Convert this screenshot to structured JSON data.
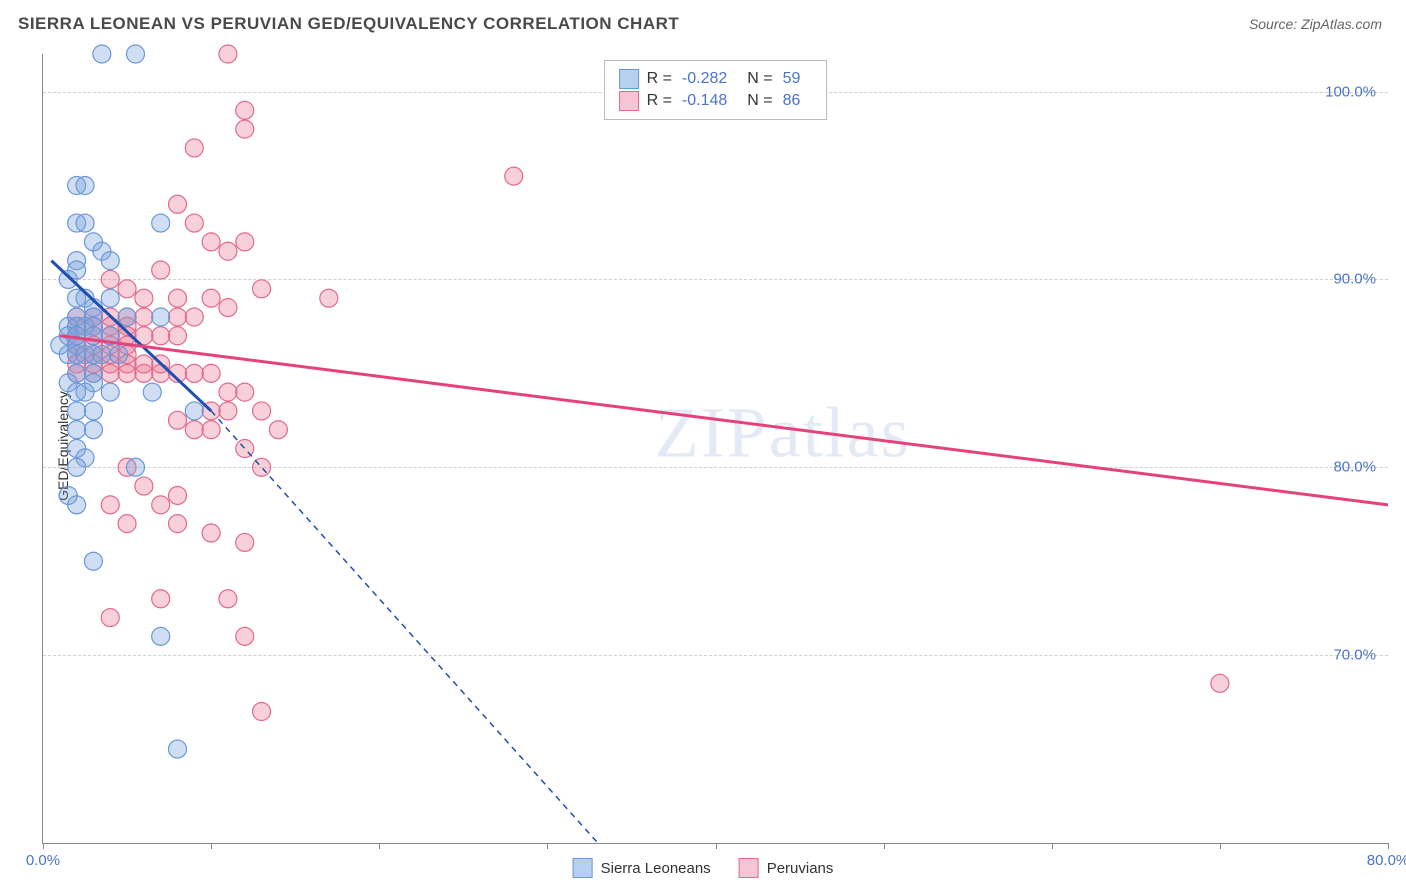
{
  "title": "SIERRA LEONEAN VS PERUVIAN GED/EQUIVALENCY CORRELATION CHART",
  "source": "Source: ZipAtlas.com",
  "ylabel": "GED/Equivalency",
  "watermark": "ZIPatlas",
  "chart": {
    "type": "scatter",
    "xlim": [
      0,
      80
    ],
    "ylim": [
      60,
      102
    ],
    "xticks": [
      0,
      10,
      20,
      30,
      40,
      50,
      60,
      70,
      80
    ],
    "xtick_labels": {
      "0": "0.0%",
      "80": "80.0%"
    },
    "yticks": [
      70,
      80,
      90,
      100
    ],
    "ytick_labels": [
      "70.0%",
      "80.0%",
      "90.0%",
      "100.0%"
    ],
    "grid_color": "#d0d0d0",
    "axis_color": "#888888",
    "background_color": "#ffffff",
    "marker_radius": 9,
    "marker_stroke_width": 1.2,
    "series": [
      {
        "name": "Sierra Leoneans",
        "color_fill": "rgba(120,160,220,0.35)",
        "color_stroke": "#6a98d8",
        "r": -0.282,
        "n": 59,
        "trend_color": "#1f4fb0",
        "trend_width": 3,
        "trend_solid": {
          "x1": 0.5,
          "y1": 91,
          "x2": 10,
          "y2": 83
        },
        "trend_dash": {
          "x1": 10,
          "y1": 83,
          "x2": 33,
          "y2": 60
        },
        "points": [
          [
            3.5,
            102
          ],
          [
            5.5,
            102
          ],
          [
            2,
            95
          ],
          [
            2.5,
            95
          ],
          [
            2,
            93
          ],
          [
            2.5,
            93
          ],
          [
            3,
            92
          ],
          [
            3.5,
            91.5
          ],
          [
            2,
            91
          ],
          [
            4,
            91
          ],
          [
            2,
            90.5
          ],
          [
            1.5,
            90
          ],
          [
            7,
            93
          ],
          [
            2,
            89
          ],
          [
            2.5,
            89
          ],
          [
            3,
            88.5
          ],
          [
            2,
            88
          ],
          [
            3,
            88
          ],
          [
            1.5,
            87.5
          ],
          [
            2,
            87.5
          ],
          [
            2.5,
            87.5
          ],
          [
            3,
            87.5
          ],
          [
            1.5,
            87
          ],
          [
            2,
            87
          ],
          [
            3,
            87
          ],
          [
            4,
            87
          ],
          [
            1,
            86.5
          ],
          [
            2,
            86.5
          ],
          [
            1.5,
            86
          ],
          [
            2,
            86
          ],
          [
            2.5,
            86
          ],
          [
            3,
            86
          ],
          [
            7,
            88
          ],
          [
            2,
            85
          ],
          [
            3,
            85
          ],
          [
            1.5,
            84.5
          ],
          [
            2,
            84
          ],
          [
            2.5,
            84
          ],
          [
            4,
            84
          ],
          [
            6.5,
            84
          ],
          [
            2,
            83
          ],
          [
            3,
            83
          ],
          [
            9,
            83
          ],
          [
            2,
            82
          ],
          [
            3,
            82
          ],
          [
            2,
            81
          ],
          [
            2.5,
            80.5
          ],
          [
            2,
            80
          ],
          [
            5.5,
            80
          ],
          [
            1.5,
            78.5
          ],
          [
            2,
            78
          ],
          [
            3,
            75
          ],
          [
            7,
            71
          ],
          [
            8,
            65
          ],
          [
            4,
            89
          ],
          [
            5,
            88
          ],
          [
            3.5,
            86
          ],
          [
            4.5,
            86
          ],
          [
            3,
            84.5
          ]
        ]
      },
      {
        "name": "Peruvians",
        "color_fill": "rgba(235,120,150,0.35)",
        "color_stroke": "#e16a8e",
        "r": -0.148,
        "n": 86,
        "trend_color": "#e6427a",
        "trend_width": 3,
        "trend_solid": {
          "x1": 1,
          "y1": 87,
          "x2": 80,
          "y2": 78
        },
        "points": [
          [
            11,
            102
          ],
          [
            12,
            99
          ],
          [
            12,
            98
          ],
          [
            9,
            97
          ],
          [
            28,
            95.5
          ],
          [
            8,
            94
          ],
          [
            12,
            92
          ],
          [
            11,
            91.5
          ],
          [
            9,
            93
          ],
          [
            10,
            92
          ],
          [
            7,
            90.5
          ],
          [
            13,
            89.5
          ],
          [
            17,
            89
          ],
          [
            4,
            90
          ],
          [
            5,
            89.5
          ],
          [
            6,
            89
          ],
          [
            8,
            89
          ],
          [
            10,
            89
          ],
          [
            11,
            88.5
          ],
          [
            2,
            88
          ],
          [
            3,
            88
          ],
          [
            4,
            88
          ],
          [
            5,
            88
          ],
          [
            6,
            88
          ],
          [
            8,
            88
          ],
          [
            9,
            88
          ],
          [
            2,
            87.5
          ],
          [
            3,
            87.5
          ],
          [
            4,
            87.5
          ],
          [
            5,
            87.5
          ],
          [
            2,
            87
          ],
          [
            3,
            87
          ],
          [
            4,
            87
          ],
          [
            5,
            87
          ],
          [
            6,
            87
          ],
          [
            7,
            87
          ],
          [
            8,
            87
          ],
          [
            2,
            86.5
          ],
          [
            3,
            86.5
          ],
          [
            4,
            86.5
          ],
          [
            5,
            86.5
          ],
          [
            2,
            86
          ],
          [
            3,
            86
          ],
          [
            4,
            86
          ],
          [
            5,
            86
          ],
          [
            2,
            85.5
          ],
          [
            3,
            85.5
          ],
          [
            4,
            85.5
          ],
          [
            5,
            85.5
          ],
          [
            6,
            85.5
          ],
          [
            7,
            85.5
          ],
          [
            2,
            85
          ],
          [
            3,
            85
          ],
          [
            4,
            85
          ],
          [
            5,
            85
          ],
          [
            6,
            85
          ],
          [
            7,
            85
          ],
          [
            8,
            85
          ],
          [
            9,
            85
          ],
          [
            10,
            85
          ],
          [
            11,
            84
          ],
          [
            12,
            84
          ],
          [
            13,
            83
          ],
          [
            10,
            83
          ],
          [
            11,
            83
          ],
          [
            8,
            82.5
          ],
          [
            9,
            82
          ],
          [
            10,
            82
          ],
          [
            14,
            82
          ],
          [
            12,
            81
          ],
          [
            13,
            80
          ],
          [
            5,
            80
          ],
          [
            6,
            79
          ],
          [
            8,
            78.5
          ],
          [
            4,
            78
          ],
          [
            7,
            78
          ],
          [
            5,
            77
          ],
          [
            8,
            77
          ],
          [
            10,
            76.5
          ],
          [
            12,
            76
          ],
          [
            7,
            73
          ],
          [
            11,
            73
          ],
          [
            4,
            72
          ],
          [
            12,
            71
          ],
          [
            13,
            67
          ],
          [
            70,
            68.5
          ]
        ]
      }
    ]
  },
  "legend": {
    "swatch_blue_fill": "#b8d0f0",
    "swatch_blue_stroke": "#6a98d8",
    "swatch_pink_fill": "#f5c5d5",
    "swatch_pink_stroke": "#e16a8e",
    "label_r": "R =",
    "label_n": "N ="
  },
  "bottom_legend": {
    "items": [
      "Sierra Leoneans",
      "Peruvians"
    ]
  },
  "colors": {
    "label_blue": "#4a74c9",
    "text_gray": "#4a4a4a"
  }
}
